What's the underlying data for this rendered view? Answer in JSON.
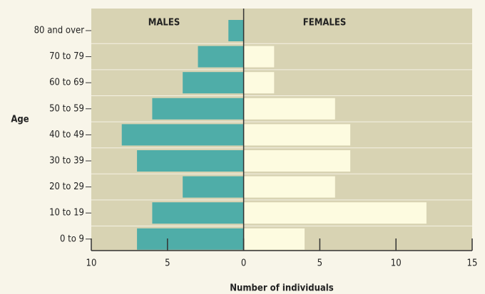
{
  "chart_data": {
    "type": "pyramid",
    "xlabel": "Number of individuals",
    "ylabel": "Age",
    "categories": [
      "80 and over",
      "70 to 79",
      "60 to 69",
      "50 to 59",
      "40 to 49",
      "30 to 39",
      "20 to 29",
      "10 to 19",
      "0 to 9"
    ],
    "series": [
      {
        "name": "MALES",
        "color": "#4fada8",
        "values": [
          1,
          3,
          4,
          6,
          8,
          7,
          4,
          6,
          7
        ]
      },
      {
        "name": "FEMALES",
        "color": "#fdfbe0",
        "values": [
          0,
          2,
          2,
          6,
          7,
          7,
          6,
          12,
          4
        ]
      }
    ],
    "xlim": [
      -10,
      15
    ],
    "xticks": [
      {
        "value": -10,
        "label": "10"
      },
      {
        "value": -5,
        "label": "5"
      },
      0,
      5,
      10,
      15
    ],
    "grid": true
  }
}
